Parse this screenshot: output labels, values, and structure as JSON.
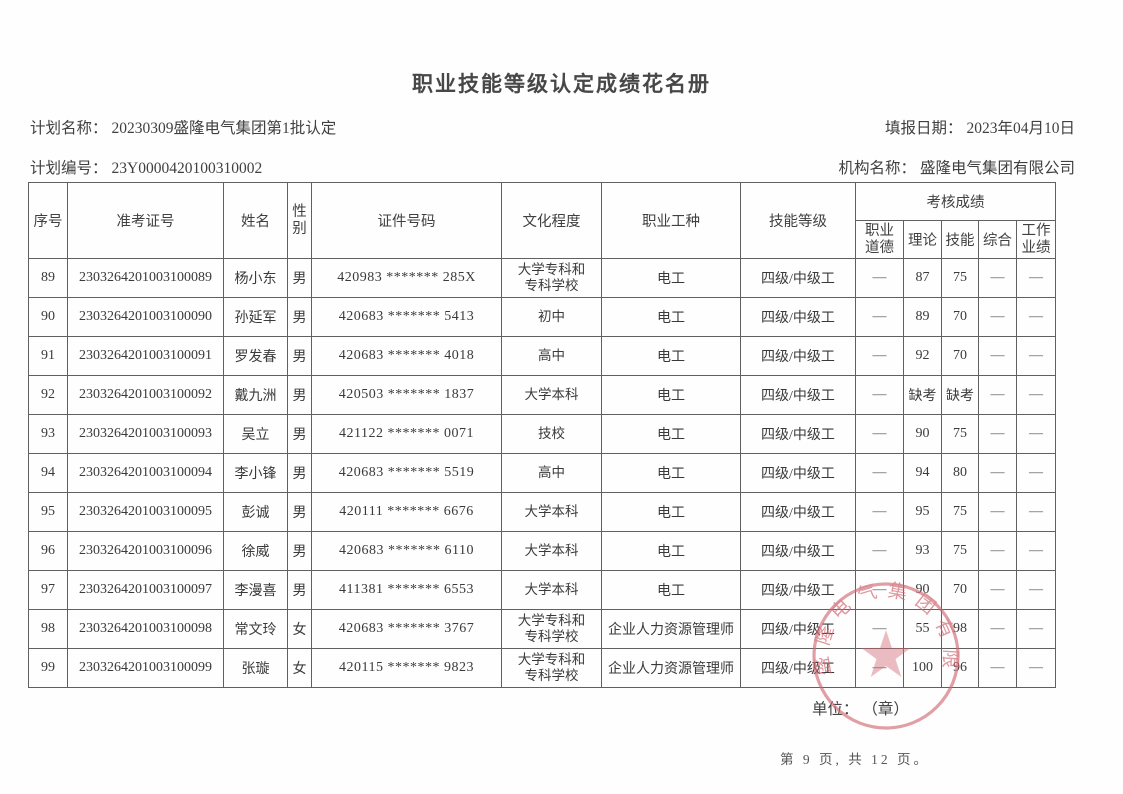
{
  "page": {
    "title": "职业技能等级认定成绩花名册"
  },
  "meta": {
    "plan_name_label": "计划名称：",
    "plan_name": "20230309盛隆电气集团第1批认定",
    "report_date_label": "填报日期：",
    "report_date": "2023年04月10日",
    "plan_no_label": "计划编号：",
    "plan_no": "23Y0000420100310002",
    "org_label": "机构名称：",
    "org_name": "盛隆电气集团有限公司"
  },
  "table": {
    "headers": {
      "no": "序号",
      "ticket": "准考证号",
      "name": "姓名",
      "gender": "性别",
      "id": "证件号码",
      "education": "文化程度",
      "occupation": "职业工种",
      "level": "技能等级",
      "score_group": "考核成绩",
      "score_cols": [
        "职业道德",
        "理论",
        "技能",
        "综合",
        "工作业绩"
      ]
    },
    "rows": [
      {
        "no": "89",
        "ticket": "2303264201003100089",
        "name": "杨小东",
        "gender": "男",
        "id": "420983 ******* 285X",
        "education": "大学专科和\n专科学校",
        "occupation": "电工",
        "level": "四级/中级工",
        "scores": [
          "—",
          "87",
          "75",
          "—",
          "—"
        ]
      },
      {
        "no": "90",
        "ticket": "2303264201003100090",
        "name": "孙延军",
        "gender": "男",
        "id": "420683 ******* 5413",
        "education": "初中",
        "occupation": "电工",
        "level": "四级/中级工",
        "scores": [
          "—",
          "89",
          "70",
          "—",
          "—"
        ]
      },
      {
        "no": "91",
        "ticket": "2303264201003100091",
        "name": "罗发春",
        "gender": "男",
        "id": "420683 ******* 4018",
        "education": "高中",
        "occupation": "电工",
        "level": "四级/中级工",
        "scores": [
          "—",
          "92",
          "70",
          "—",
          "—"
        ]
      },
      {
        "no": "92",
        "ticket": "2303264201003100092",
        "name": "戴九洲",
        "gender": "男",
        "id": "420503 ******* 1837",
        "education": "大学本科",
        "occupation": "电工",
        "level": "四级/中级工",
        "scores": [
          "—",
          "缺考",
          "缺考",
          "—",
          "—"
        ]
      },
      {
        "no": "93",
        "ticket": "2303264201003100093",
        "name": "吴立",
        "gender": "男",
        "id": "421122 ******* 0071",
        "education": "技校",
        "occupation": "电工",
        "level": "四级/中级工",
        "scores": [
          "—",
          "90",
          "75",
          "—",
          "—"
        ]
      },
      {
        "no": "94",
        "ticket": "2303264201003100094",
        "name": "李小锋",
        "gender": "男",
        "id": "420683 ******* 5519",
        "education": "高中",
        "occupation": "电工",
        "level": "四级/中级工",
        "scores": [
          "—",
          "94",
          "80",
          "—",
          "—"
        ]
      },
      {
        "no": "95",
        "ticket": "2303264201003100095",
        "name": "彭诚",
        "gender": "男",
        "id": "420111 ******* 6676",
        "education": "大学本科",
        "occupation": "电工",
        "level": "四级/中级工",
        "scores": [
          "—",
          "95",
          "75",
          "—",
          "—"
        ]
      },
      {
        "no": "96",
        "ticket": "2303264201003100096",
        "name": "徐威",
        "gender": "男",
        "id": "420683 ******* 6110",
        "education": "大学本科",
        "occupation": "电工",
        "level": "四级/中级工",
        "scores": [
          "—",
          "93",
          "75",
          "—",
          "—"
        ]
      },
      {
        "no": "97",
        "ticket": "2303264201003100097",
        "name": "李漫喜",
        "gender": "男",
        "id": "411381 ******* 6553",
        "education": "大学本科",
        "occupation": "电工",
        "level": "四级/中级工",
        "scores": [
          "—",
          "90",
          "70",
          "—",
          "—"
        ]
      },
      {
        "no": "98",
        "ticket": "2303264201003100098",
        "name": "常文玲",
        "gender": "女",
        "id": "420683 ******* 3767",
        "education": "大学专科和\n专科学校",
        "occupation": "企业人力资源管理师",
        "level": "四级/中级工",
        "scores": [
          "—",
          "55",
          "98",
          "—",
          "—"
        ]
      },
      {
        "no": "99",
        "ticket": "2303264201003100099",
        "name": "张璇",
        "gender": "女",
        "id": "420115 ******* 9823",
        "education": "大学专科和\n专科学校",
        "occupation": "企业人力资源管理师",
        "level": "四级/中级工",
        "scores": [
          "—",
          "100",
          "96",
          "—",
          "—"
        ]
      }
    ]
  },
  "footer": {
    "unit_line": "单位：  （章）",
    "page_info": "第 9 页, 共 12 页。"
  },
  "stamp": {
    "company": "盛隆电气集团有限公司",
    "color": "#cf6570"
  }
}
